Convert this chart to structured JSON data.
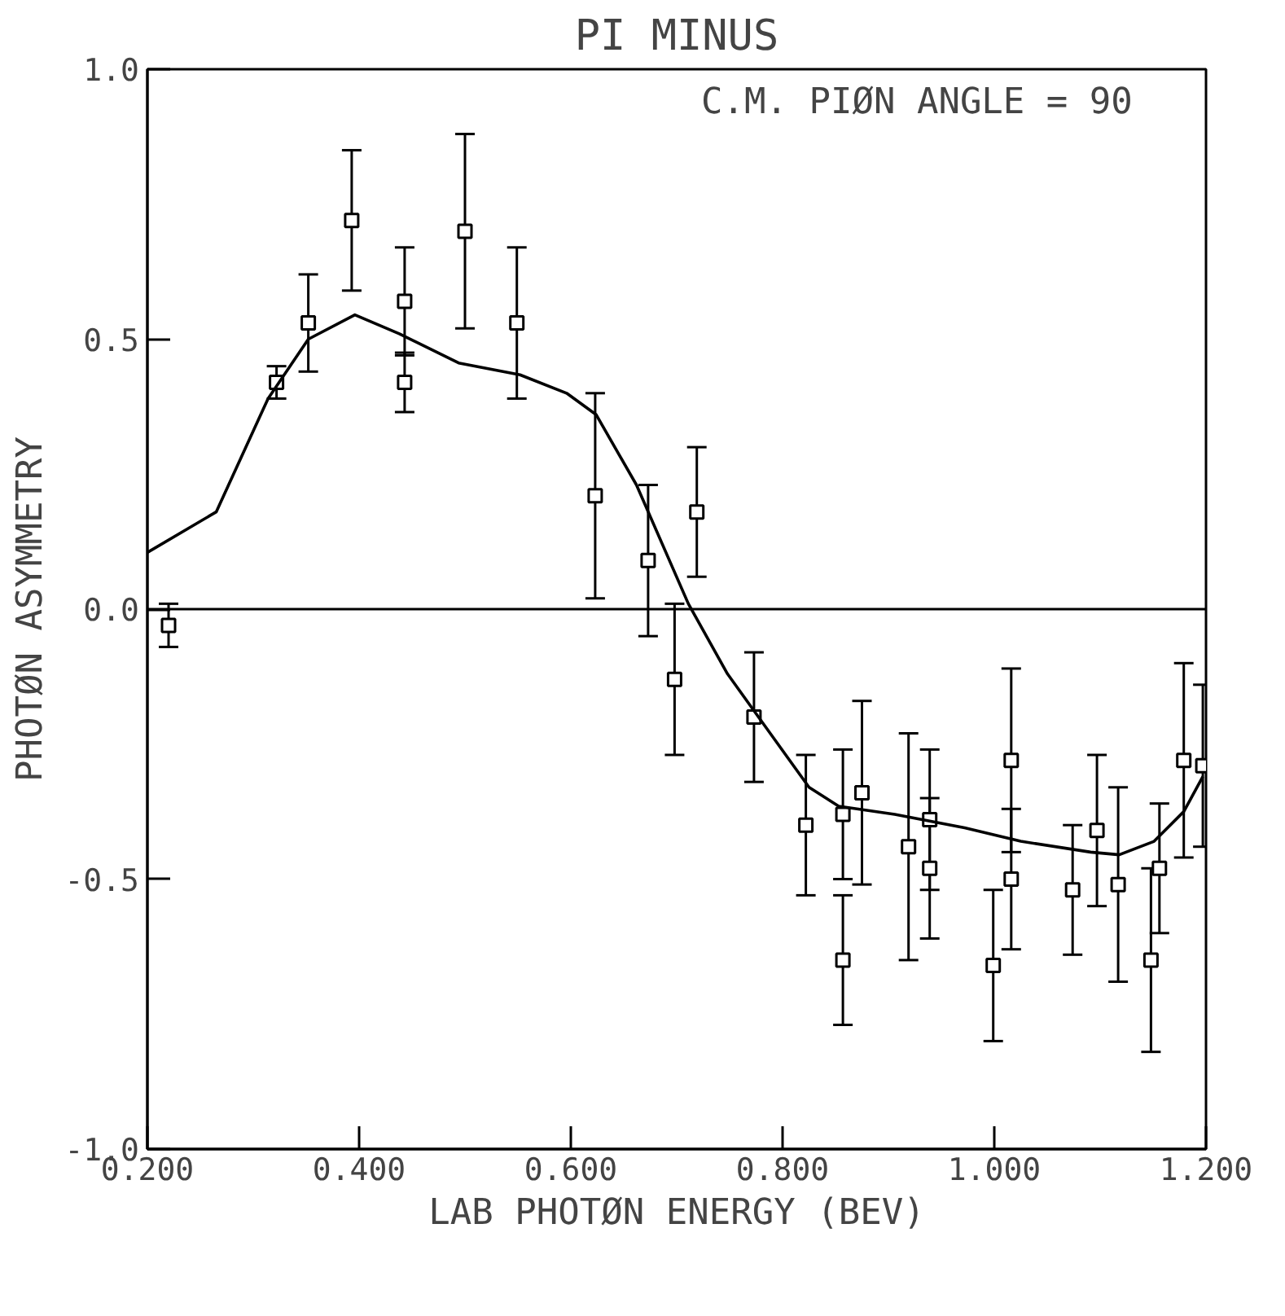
{
  "chart_data": {
    "type": "scatter",
    "title": "PI MINUS",
    "xlabel": "LAB PHOTØN ENERGY (BEV)",
    "ylabel": "PHOTØN ASYMMETRY",
    "annotations": [
      "C.M. PIØN ANGLE =  90"
    ],
    "xlim": [
      0.2,
      1.2
    ],
    "ylim": [
      -1.0,
      1.0
    ],
    "xticks": [
      {
        "value": 0.2,
        "label": "0.200"
      },
      {
        "value": 0.4,
        "label": "0.400"
      },
      {
        "value": 0.6,
        "label": "0.600"
      },
      {
        "value": 0.8,
        "label": "0.800"
      },
      {
        "value": 1.0,
        "label": "1.000"
      },
      {
        "value": 1.2,
        "label": "1.200"
      }
    ],
    "yticks": [
      {
        "value": -1.0,
        "label": "-1.0"
      },
      {
        "value": -0.5,
        "label": "-0.5"
      },
      {
        "value": 0.0,
        "label": "0.0"
      },
      {
        "value": 0.5,
        "label": "0.5"
      },
      {
        "value": 1.0,
        "label": "1.0"
      }
    ],
    "grid": false,
    "marker": "square",
    "ref_lines": [
      {
        "axis": "y",
        "value": 0.0,
        "color": "#000000"
      }
    ],
    "series": [
      {
        "color": "#000000",
        "x": [
          0.22,
          0.322,
          0.352,
          0.393,
          0.443,
          0.443,
          0.5,
          0.549,
          0.623,
          0.673,
          0.698,
          0.719,
          0.773,
          0.822,
          0.857,
          0.857,
          0.875,
          0.919,
          0.939,
          0.939,
          0.999,
          1.016,
          1.016,
          1.074,
          1.097,
          1.117,
          1.148,
          1.156,
          1.179,
          1.197
        ],
        "values": [
          -0.03,
          0.42,
          0.53,
          0.72,
          0.57,
          0.42,
          0.7,
          0.53,
          0.21,
          0.09,
          -0.13,
          0.18,
          -0.2,
          -0.4,
          -0.38,
          -0.65,
          -0.34,
          -0.44,
          -0.39,
          -0.48,
          -0.66,
          -0.28,
          -0.5,
          -0.52,
          -0.41,
          -0.51,
          -0.65,
          -0.48,
          -0.28,
          -0.29
        ],
        "errors": [
          0.04,
          0.03,
          0.09,
          0.13,
          0.1,
          0.055,
          0.18,
          0.14,
          0.19,
          0.14,
          0.14,
          0.12,
          0.12,
          0.13,
          0.12,
          0.12,
          0.17,
          0.21,
          0.13,
          0.13,
          0.14,
          0.17,
          0.13,
          0.12,
          0.14,
          0.18,
          0.17,
          0.12,
          0.18,
          0.15
        ]
      },
      {
        "type": "line",
        "color": "#000000",
        "line_style": "solid",
        "marker": "none",
        "x": [
          0.2,
          0.265,
          0.314,
          0.352,
          0.396,
          0.438,
          0.494,
          0.552,
          0.596,
          0.624,
          0.662,
          0.711,
          0.748,
          0.781,
          0.825,
          0.853,
          0.906,
          0.972,
          1.025,
          1.091,
          1.118,
          1.151,
          1.179,
          1.197
        ],
        "values": [
          0.105,
          0.18,
          0.39,
          0.5,
          0.545,
          0.51,
          0.456,
          0.434,
          0.4,
          0.36,
          0.23,
          0.01,
          -0.12,
          -0.21,
          -0.33,
          -0.365,
          -0.38,
          -0.405,
          -0.43,
          -0.45,
          -0.455,
          -0.43,
          -0.375,
          -0.31
        ]
      }
    ]
  }
}
